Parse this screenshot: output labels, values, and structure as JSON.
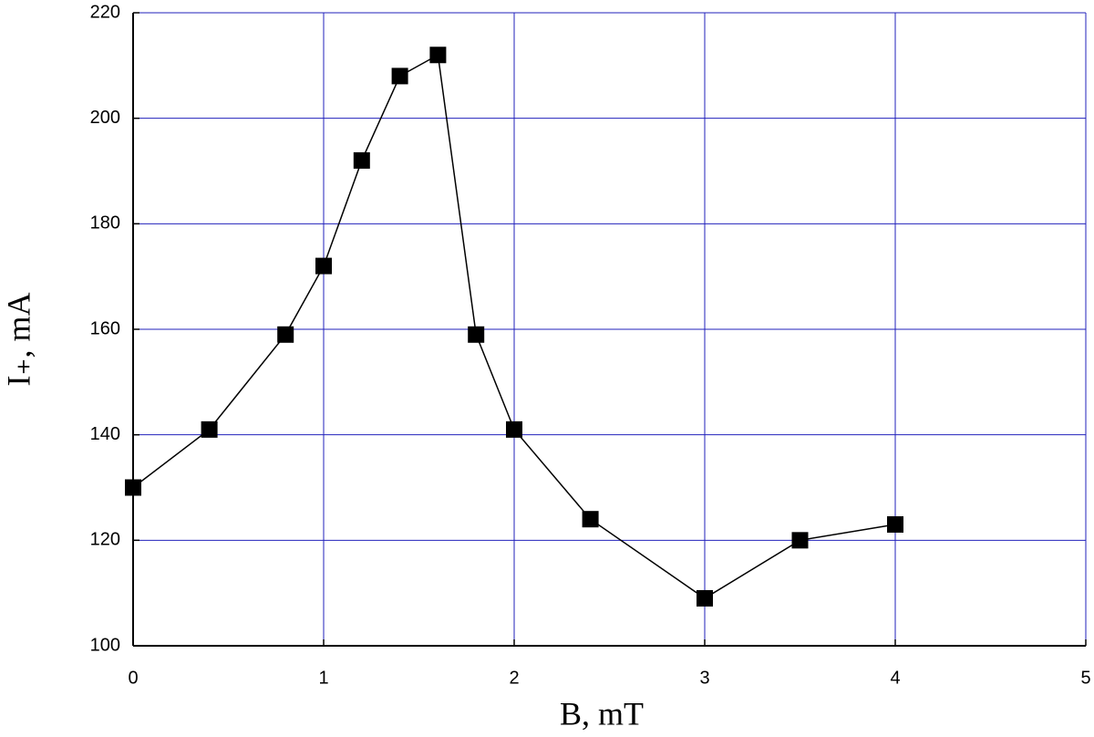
{
  "chart_data": {
    "type": "line",
    "xlabel": "B, mT",
    "ylabel": "I₊, mA",
    "x": [
      0,
      0.4,
      0.8,
      1,
      1.2,
      1.4,
      1.6,
      1.8,
      2,
      2.4,
      3,
      3.5,
      4
    ],
    "series": [
      {
        "color": "#000000",
        "values": [
          130,
          141,
          159,
          172,
          192,
          208,
          212,
          159,
          141,
          124,
          109,
          120,
          123
        ]
      }
    ],
    "xlim": [
      0,
      5
    ],
    "xticks": [
      0,
      1,
      2,
      3,
      4,
      5
    ],
    "ylim": [
      100,
      220
    ],
    "yticks": [
      100,
      120,
      140,
      160,
      180,
      200,
      220
    ],
    "grid": true,
    "grid_color": "#2222bb"
  }
}
